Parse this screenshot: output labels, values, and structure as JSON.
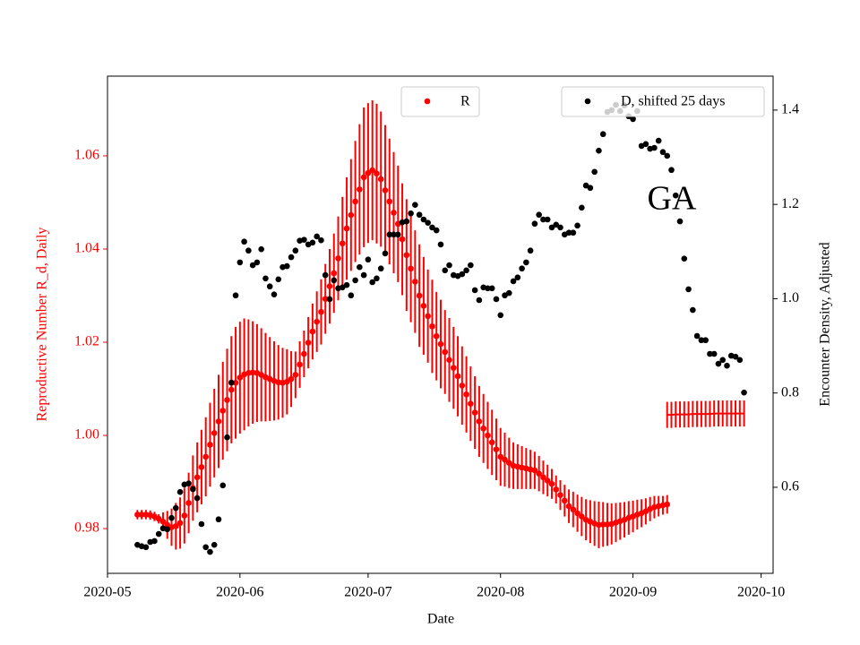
{
  "chart_data": {
    "type": "scatter",
    "xlabel": "Date",
    "ylabel": "Reproductive Number R_d, Daily",
    "y2label": "Encounter Density, Adjusted",
    "ycolor": "#ff0000",
    "annotations": [
      {
        "text": "GA"
      }
    ],
    "xlim": [
      0,
      155.8
    ],
    "xticks": [
      {
        "value": 0,
        "label": "2020-05"
      },
      {
        "value": 31,
        "label": "2020-06"
      },
      {
        "value": 61,
        "label": "2020-07"
      },
      {
        "value": 92,
        "label": "2020-08"
      },
      {
        "value": 123,
        "label": "2020-09"
      },
      {
        "value": 153,
        "label": "2020-10"
      }
    ],
    "ylim": [
      0.9704,
      1.0771
    ],
    "yticks": [
      0.98,
      {
        "value": 1,
        "label": "1.00"
      },
      1.02,
      1.04,
      1.06
    ],
    "y2lim": [
      0.4175,
      1.472
    ],
    "y2ticks": [
      0.6,
      0.8,
      {
        "value": 1,
        "label": "1.0"
      },
      1.2,
      1.4
    ],
    "series": [
      {
        "name": "R",
        "color": "#ff0000",
        "marker": "dot",
        "legend": "upper center",
        "x": [
          7,
          8,
          9,
          10,
          11,
          12,
          13,
          14,
          15,
          16,
          17,
          18,
          19,
          20,
          21,
          22,
          23,
          24,
          25,
          26,
          27,
          28,
          29,
          30,
          31,
          32,
          33,
          34,
          35,
          36,
          37,
          38,
          39,
          40,
          41,
          42,
          43,
          44,
          45,
          46,
          47,
          48,
          49,
          50,
          51,
          52,
          53,
          54,
          55,
          56,
          57,
          58,
          59,
          60,
          61,
          62,
          63,
          64,
          65,
          66,
          67,
          68,
          69,
          70,
          71,
          72,
          73,
          74,
          75,
          76,
          77,
          78,
          79,
          80,
          81,
          82,
          83,
          84,
          85,
          86,
          87,
          88,
          89,
          90,
          91,
          92,
          93,
          94,
          95,
          96,
          97,
          98,
          99,
          100,
          101,
          102,
          103,
          104,
          105,
          106,
          107,
          108,
          109,
          110,
          111,
          112,
          113,
          114,
          115,
          116,
          117,
          118,
          119,
          120,
          121,
          122,
          123,
          124,
          125,
          126,
          127,
          128,
          129,
          130,
          131
        ],
        "values": [
          0.983,
          0.983,
          0.983,
          0.9829,
          0.9826,
          0.9821,
          0.9815,
          0.9808,
          0.9803,
          0.9805,
          0.9812,
          0.9828,
          0.9855,
          0.9887,
          0.991,
          0.9932,
          0.9954,
          0.998,
          1.0005,
          1.003,
          1.0053,
          1.0076,
          1.0098,
          1.0113,
          1.0124,
          1.0131,
          1.0134,
          1.0135,
          1.0134,
          1.013,
          1.0125,
          1.0121,
          1.0117,
          1.0114,
          1.0113,
          1.0115,
          1.0121,
          1.013,
          1.0152,
          1.0175,
          1.0199,
          1.0223,
          1.0244,
          1.0265,
          1.0293,
          1.032,
          1.0348,
          1.038,
          1.0412,
          1.0444,
          1.0473,
          1.0502,
          1.0528,
          1.0554,
          1.0563,
          1.0569,
          1.0562,
          1.055,
          1.0526,
          1.0502,
          1.0478,
          1.0454,
          1.0421,
          1.0387,
          1.0358,
          1.033,
          1.03,
          1.0278,
          1.0256,
          1.0234,
          1.0213,
          1.0196,
          1.0179,
          1.0162,
          1.0145,
          1.0127,
          1.0107,
          1.0088,
          1.0068,
          1.0049,
          1.003,
          1.0015,
          1.0,
          0.9985,
          0.997,
          0.9954,
          0.9948,
          0.9941,
          0.9935,
          0.9933,
          0.9931,
          0.9929,
          0.9927,
          0.9925,
          0.9918,
          0.991,
          0.9903,
          0.9896,
          0.9884,
          0.9872,
          0.986,
          0.9848,
          0.9841,
          0.9833,
          0.9826,
          0.9819,
          0.9815,
          0.9811,
          0.9808,
          0.9809,
          0.9809,
          0.981,
          0.9813,
          0.9816,
          0.9819,
          0.9823,
          0.9826,
          0.983,
          0.9833,
          0.9837,
          0.9842,
          0.9846,
          0.9848,
          0.985,
          0.9852
        ],
        "errors": [
          0.001,
          0.001,
          0.001,
          0.001,
          0.001,
          0.001,
          0.002,
          0.003,
          0.004,
          0.005,
          0.0055,
          0.006,
          0.0065,
          0.007,
          0.0075,
          0.008,
          0.0085,
          0.009,
          0.0095,
          0.01,
          0.0105,
          0.011,
          0.0115,
          0.012,
          0.012,
          0.012,
          0.0115,
          0.011,
          0.0105,
          0.01,
          0.0095,
          0.009,
          0.0085,
          0.008,
          0.0075,
          0.007,
          0.006,
          0.005,
          0.005,
          0.005,
          0.0055,
          0.006,
          0.0065,
          0.007,
          0.0075,
          0.008,
          0.0085,
          0.009,
          0.01,
          0.011,
          0.012,
          0.013,
          0.014,
          0.015,
          0.015,
          0.015,
          0.015,
          0.0145,
          0.014,
          0.0135,
          0.013,
          0.0125,
          0.012,
          0.012,
          0.0115,
          0.011,
          0.011,
          0.0105,
          0.01,
          0.01,
          0.0095,
          0.0095,
          0.009,
          0.009,
          0.0088,
          0.0086,
          0.0084,
          0.0082,
          0.008,
          0.0078,
          0.0076,
          0.0074,
          0.0072,
          0.007,
          0.0066,
          0.0062,
          0.0058,
          0.0054,
          0.005,
          0.0048,
          0.0046,
          0.0044,
          0.0042,
          0.004,
          0.0038,
          0.0036,
          0.0034,
          0.0032,
          0.003,
          0.0032,
          0.0034,
          0.0036,
          0.0038,
          0.004,
          0.0042,
          0.0044,
          0.0046,
          0.0048,
          0.005,
          0.0048,
          0.0046,
          0.0044,
          0.0042,
          0.004,
          0.0038,
          0.0036,
          0.0034,
          0.0032,
          0.003,
          0.0028,
          0.0026,
          0.0024,
          0.0022,
          0.002,
          0.002
        ]
      },
      {
        "color": "#ff0000",
        "marker": "line",
        "x": [
          131,
          132,
          133,
          134,
          135,
          136,
          137,
          138,
          139,
          140,
          141,
          142,
          143,
          144,
          145,
          146,
          147,
          148,
          149
        ],
        "values": [
          1.0044,
          1.0044,
          1.0045,
          1.0045,
          1.0045,
          1.0045,
          1.0046,
          1.0046,
          1.0046,
          1.0046,
          1.0046,
          1.0047,
          1.0047,
          1.0047,
          1.0047,
          1.0047,
          1.0047,
          1.0047,
          1.0047
        ],
        "errors": [
          0.0028,
          0.0028,
          0.0028,
          0.0028,
          0.0028,
          0.0028,
          0.0028,
          0.0028,
          0.0028,
          0.0028,
          0.0028,
          0.0028,
          0.0028,
          0.0028,
          0.0028,
          0.0028,
          0.0028,
          0.0028,
          0.0028
        ]
      },
      {
        "name": "D, shifted 25 days",
        "color": "#000000",
        "marker": "dot",
        "axis": "y2",
        "legend": "upper right",
        "x": [
          7,
          8,
          9,
          10,
          11,
          12,
          13,
          14,
          15,
          16,
          17,
          18,
          19,
          20,
          21,
          22,
          23,
          24,
          25,
          26,
          27,
          28,
          29,
          30,
          31,
          32,
          33,
          34,
          35,
          36,
          37,
          38,
          39,
          40,
          41,
          42,
          43,
          44,
          45,
          46,
          47,
          48,
          49,
          50,
          51,
          52,
          53,
          54,
          55,
          56,
          57,
          58,
          59,
          60,
          61,
          62,
          63,
          64,
          65,
          66,
          67,
          68,
          69,
          70,
          71,
          72,
          73,
          74,
          75,
          76,
          77,
          78,
          79,
          80,
          81,
          82,
          83,
          84,
          85,
          86,
          87,
          88,
          89,
          90,
          91,
          92,
          93,
          94,
          95,
          96,
          97,
          98,
          99,
          100,
          101,
          102,
          103,
          104,
          105,
          106,
          107,
          108,
          109,
          110,
          111,
          112,
          113,
          114,
          115,
          116,
          117,
          118,
          119,
          120,
          121,
          122,
          123,
          124,
          125,
          126,
          127,
          128,
          129,
          130,
          131,
          132,
          133,
          134,
          135,
          136,
          137,
          138,
          139,
          140,
          141,
          142,
          143,
          144,
          145,
          146,
          147,
          148,
          149
        ],
        "values": [
          0.478,
          0.475,
          0.473,
          0.484,
          0.486,
          0.501,
          0.513,
          0.511,
          0.535,
          0.556,
          0.59,
          0.606,
          0.608,
          0.596,
          0.577,
          0.522,
          0.473,
          0.463,
          0.478,
          0.532,
          0.604,
          0.706,
          0.822,
          1.007,
          1.077,
          1.121,
          1.102,
          1.071,
          1.077,
          1.105,
          1.043,
          1.026,
          1.009,
          1.041,
          1.067,
          1.069,
          1.088,
          1.102,
          1.123,
          1.125,
          1.115,
          1.119,
          1.132,
          1.124,
          1.05,
          0.999,
          1.039,
          1.022,
          1.024,
          1.029,
          1.007,
          1.039,
          1.067,
          1.05,
          1.083,
          1.035,
          1.043,
          1.064,
          1.096,
          1.136,
          1.136,
          1.136,
          1.162,
          1.164,
          1.181,
          1.199,
          1.178,
          1.168,
          1.161,
          1.151,
          1.145,
          1.115,
          1.06,
          1.071,
          1.05,
          1.048,
          1.052,
          1.06,
          1.071,
          1.018,
          0.997,
          1.024,
          1.022,
          1.022,
          0.999,
          0.965,
          1.007,
          1.012,
          1.037,
          1.045,
          1.064,
          1.077,
          1.102,
          1.159,
          1.178,
          1.168,
          1.168,
          1.151,
          1.157,
          1.151,
          1.136,
          1.14,
          1.14,
          1.155,
          1.193,
          1.24,
          1.235,
          1.269,
          1.314,
          1.349,
          1.396,
          1.4,
          1.411,
          1.398,
          1.41,
          1.387,
          1.381,
          1.398,
          1.324,
          1.328,
          1.318,
          1.32,
          1.335,
          1.311,
          1.303,
          1.273,
          1.219,
          1.164,
          1.085,
          1.02,
          0.976,
          0.921,
          0.912,
          0.912,
          0.883,
          0.883,
          0.862,
          0.87,
          0.858,
          0.879,
          0.877,
          0.87,
          0.801
        ]
      }
    ]
  }
}
